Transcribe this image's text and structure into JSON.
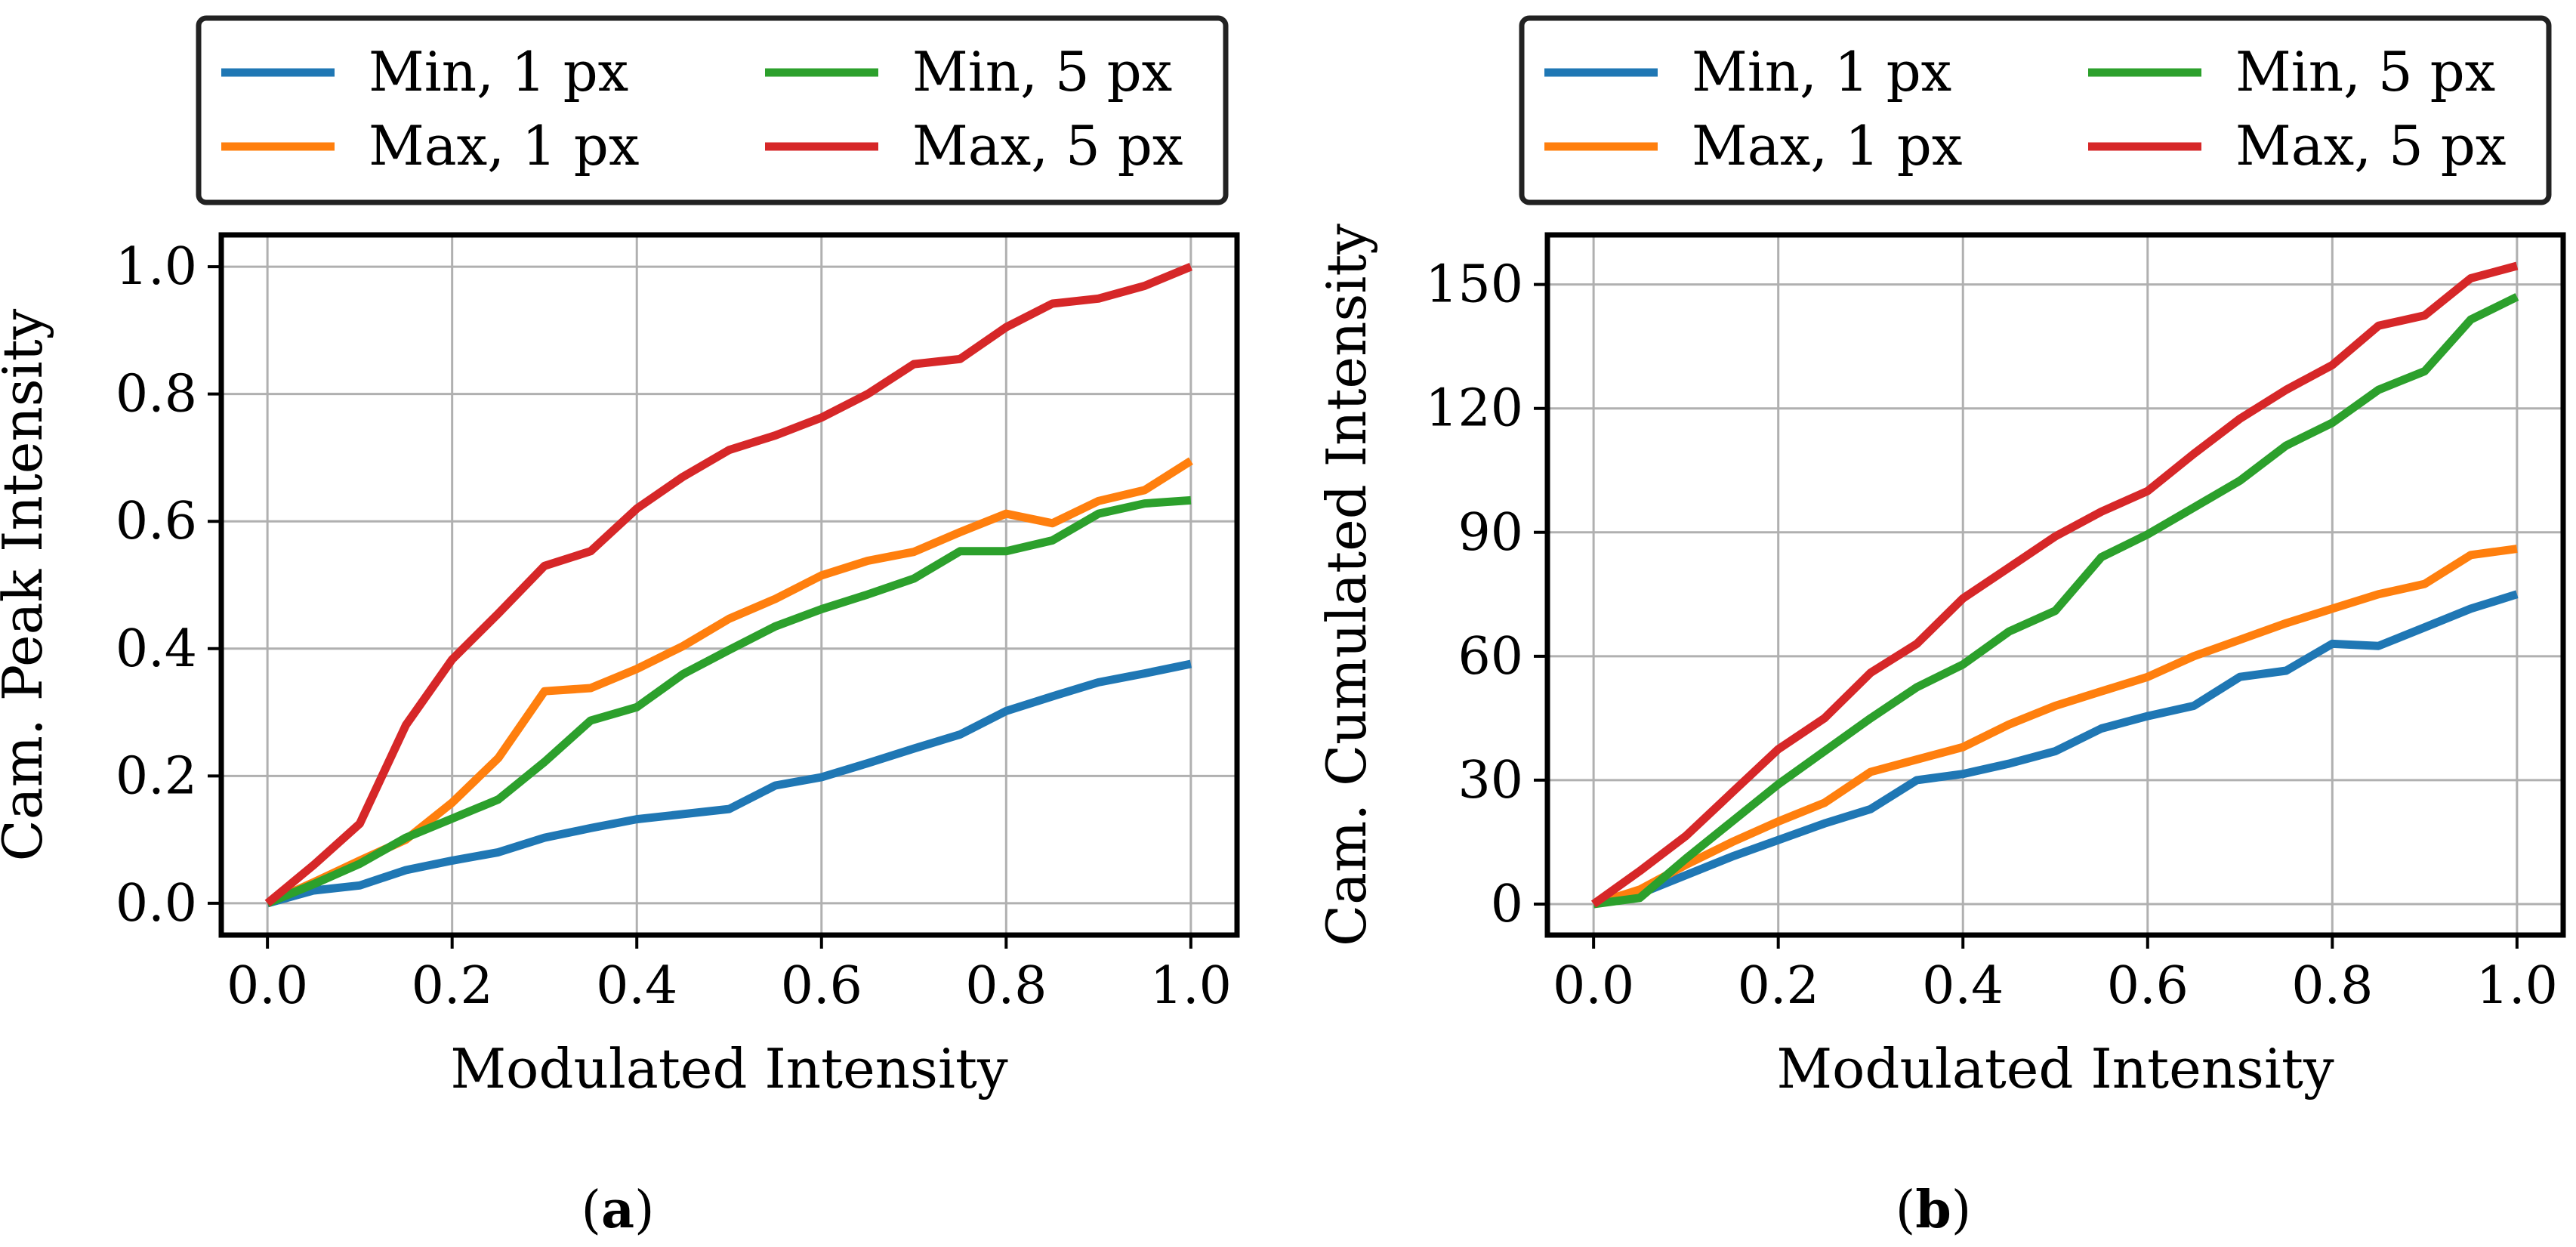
{
  "chart_data": [
    {
      "type": "line",
      "panel_label": "a",
      "xlabel": "Modulated Intensity",
      "ylabel": "Cam. Peak Intensity",
      "xlim": [
        -0.05,
        1.05
      ],
      "ylim": [
        -0.05,
        1.05
      ],
      "xticks": [
        0.0,
        0.2,
        0.4,
        0.6,
        0.8,
        1.0
      ],
      "xtick_labels": [
        "0.0",
        "0.2",
        "0.4",
        "0.6",
        "0.8",
        "1.0"
      ],
      "yticks": [
        0.0,
        0.2,
        0.4,
        0.6,
        0.8,
        1.0
      ],
      "ytick_labels": [
        "0.0",
        "0.2",
        "0.4",
        "0.6",
        "0.8",
        "1.0"
      ],
      "grid": true,
      "legend_position": "above",
      "x": [
        0.0,
        0.05,
        0.1,
        0.15,
        0.2,
        0.25,
        0.3,
        0.35,
        0.4,
        0.45,
        0.5,
        0.55,
        0.6,
        0.65,
        0.7,
        0.75,
        0.8,
        0.85,
        0.9,
        0.95,
        1.0
      ],
      "series": [
        {
          "name": "Min, 1 px",
          "color": "#1f77b4",
          "values": [
            0.0,
            0.02,
            0.028,
            0.052,
            0.067,
            0.08,
            0.103,
            0.118,
            0.132,
            0.14,
            0.148,
            0.185,
            0.198,
            0.22,
            0.243,
            0.265,
            0.302,
            0.325,
            0.347,
            0.361,
            0.376
          ]
        },
        {
          "name": "Max, 1 px",
          "color": "#ff7f0e",
          "values": [
            0.0,
            0.033,
            0.067,
            0.1,
            0.158,
            0.228,
            0.333,
            0.338,
            0.368,
            0.404,
            0.447,
            0.478,
            0.515,
            0.538,
            0.552,
            0.583,
            0.612,
            0.597,
            0.632,
            0.649,
            0.695
          ]
        },
        {
          "name": "Min, 5 px",
          "color": "#2ca02c",
          "values": [
            0.0,
            0.03,
            0.062,
            0.103,
            0.133,
            0.163,
            0.222,
            0.287,
            0.308,
            0.36,
            0.398,
            0.435,
            0.462,
            0.485,
            0.51,
            0.553,
            0.553,
            0.57,
            0.612,
            0.628,
            0.633
          ]
        },
        {
          "name": "Max, 5 px",
          "color": "#d62728",
          "values": [
            0.0,
            0.06,
            0.125,
            0.28,
            0.383,
            0.455,
            0.53,
            0.553,
            0.62,
            0.67,
            0.712,
            0.735,
            0.763,
            0.8,
            0.847,
            0.855,
            0.905,
            0.942,
            0.95,
            0.97,
            1.0
          ]
        }
      ]
    },
    {
      "type": "line",
      "panel_label": "b",
      "xlabel": "Modulated Intensity",
      "ylabel": "Cam. Cumulated Intensity",
      "xlim": [
        -0.05,
        1.05
      ],
      "ylim": [
        -7.5,
        162
      ],
      "xticks": [
        0.0,
        0.2,
        0.4,
        0.6,
        0.8,
        1.0
      ],
      "xtick_labels": [
        "0.0",
        "0.2",
        "0.4",
        "0.6",
        "0.8",
        "1.0"
      ],
      "yticks": [
        0,
        30,
        60,
        90,
        120,
        150
      ],
      "ytick_labels": [
        "0",
        "30",
        "60",
        "90",
        "120",
        "150"
      ],
      "grid": true,
      "legend_position": "above",
      "x": [
        0.0,
        0.05,
        0.1,
        0.15,
        0.2,
        0.25,
        0.3,
        0.35,
        0.4,
        0.45,
        0.5,
        0.55,
        0.6,
        0.65,
        0.7,
        0.75,
        0.8,
        0.85,
        0.9,
        0.95,
        1.0
      ],
      "series": [
        {
          "name": "Min, 1 px",
          "color": "#1f77b4",
          "values": [
            0,
            2.5,
            7,
            11.5,
            15.5,
            19.5,
            23,
            30,
            31.5,
            34,
            37,
            42.5,
            45.5,
            48,
            55,
            56.5,
            63,
            62.5,
            67,
            71.5,
            75
          ]
        },
        {
          "name": "Max, 1 px",
          "color": "#ff7f0e",
          "values": [
            0,
            3.5,
            9.5,
            15,
            20,
            24.5,
            32,
            35,
            38,
            43.5,
            48,
            51.5,
            55,
            60,
            64,
            68,
            71.5,
            75,
            77.5,
            84.5,
            86
          ]
        },
        {
          "name": "Min, 5 px",
          "color": "#2ca02c",
          "values": [
            0,
            1.5,
            11,
            20,
            29,
            37,
            45,
            52.5,
            58,
            66,
            71,
            84,
            89.5,
            96,
            102.5,
            111,
            116.5,
            124.5,
            129,
            141.5,
            147
          ]
        },
        {
          "name": "Max, 5 px",
          "color": "#d62728",
          "values": [
            0,
            8,
            16.5,
            27,
            37.5,
            45,
            56,
            63,
            74,
            81.5,
            89,
            95,
            100,
            109,
            117.5,
            124.5,
            130.5,
            140,
            142.5,
            151.5,
            154.5
          ]
        }
      ]
    }
  ]
}
